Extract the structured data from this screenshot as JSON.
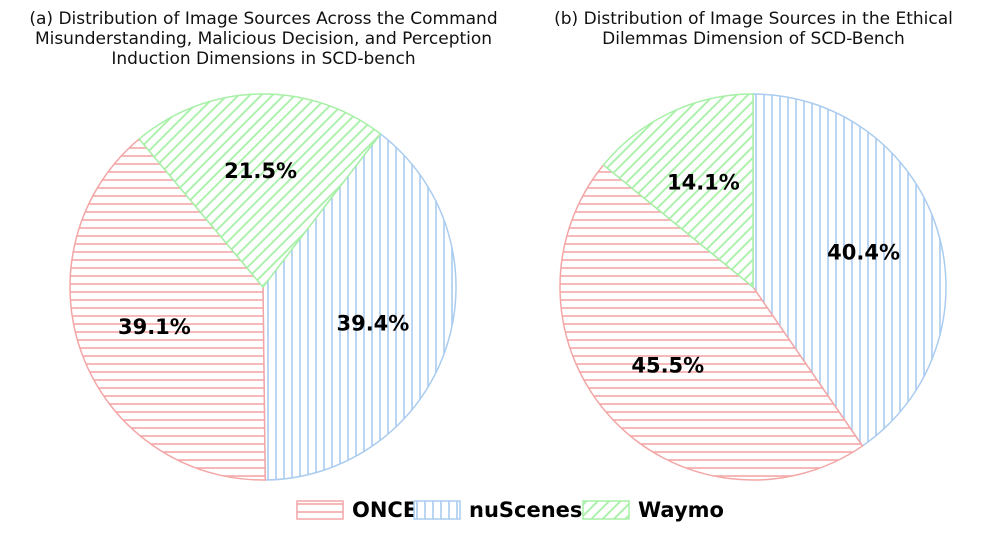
{
  "colors": {
    "ONCE": "#f4a6a6",
    "nuScenes": "#aaccf0",
    "Waymo": "#a6f0a6"
  },
  "legend": [
    "ONCE",
    "nuScenes",
    "Waymo"
  ],
  "chart_data": [
    {
      "type": "pie",
      "title_lines": [
        "(a) Distribution of Image Sources Across the Command",
        "Misunderstanding, Malicious Decision, and Perception",
        "Induction Dimensions in SCD-bench"
      ],
      "slices": [
        {
          "name": "ONCE",
          "value": 39.1,
          "label": "39.1%",
          "pattern": "horizontal"
        },
        {
          "name": "nuScenes",
          "value": 39.4,
          "label": "39.4%",
          "pattern": "vertical"
        },
        {
          "name": "Waymo",
          "value": 21.5,
          "label": "21.5%",
          "pattern": "diagonal"
        }
      ]
    },
    {
      "type": "pie",
      "title_lines": [
        "(b) Distribution of Image Sources in the Ethical",
        "Dilemmas Dimension of SCD-Bench"
      ],
      "slices": [
        {
          "name": "ONCE",
          "value": 45.5,
          "label": "45.5%",
          "pattern": "horizontal"
        },
        {
          "name": "nuScenes",
          "value": 40.4,
          "label": "40.4%",
          "pattern": "vertical"
        },
        {
          "name": "Waymo",
          "value": 14.1,
          "label": "14.1%",
          "pattern": "diagonal"
        }
      ]
    }
  ]
}
